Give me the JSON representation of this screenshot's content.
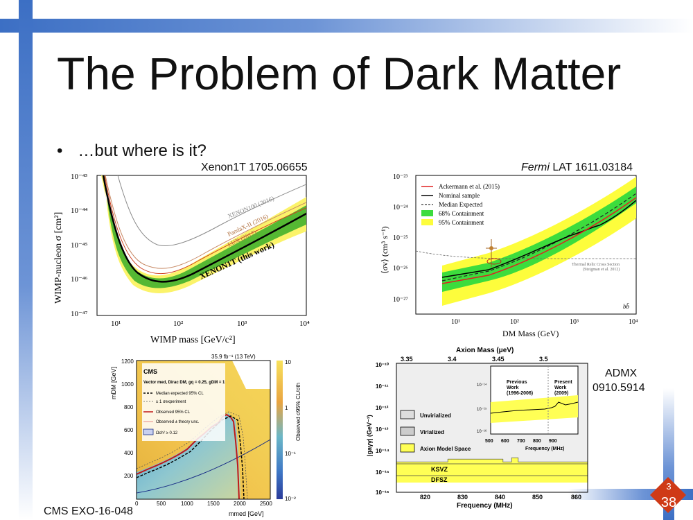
{
  "slide": {
    "title": "The Problem of Dark Matter",
    "bullet": "…but where is it?",
    "page_top": "3",
    "page_number": "38"
  },
  "refs": {
    "xenon": "Xenon1T 1705.06655",
    "fermi_italic": "Fermi",
    "fermi": " LAT 1611.03184",
    "admx_line1": "ADMX",
    "admx_line2": "0910.5914",
    "cms": "CMS EXO-16-048"
  },
  "colors": {
    "accent": "#3c6fc4",
    "badge": "#cf3a17",
    "green": "#33cc33",
    "yellow": "#ffff44"
  },
  "chart_data": [
    {
      "id": "xenon",
      "type": "line",
      "xlabel": "WIMP mass [GeV/c²]",
      "ylabel": "WIMP-nucleon σ [cm²]",
      "x_ticks": [
        "10¹",
        "10²",
        "10³",
        "10⁴"
      ],
      "y_ticks": [
        "10⁻⁴³",
        "10⁻⁴⁴",
        "10⁻⁴⁵",
        "10⁻⁴⁶",
        "10⁻⁴⁷"
      ],
      "series": [
        {
          "name": "XENON100 (2016)",
          "color": "#999999"
        },
        {
          "name": "PandaX-II (2016)",
          "color": "#cc7755"
        },
        {
          "name": "LUX (2017)",
          "color": "#cc5533"
        },
        {
          "name": "XENON1T (this work)",
          "color": "#000000"
        }
      ]
    },
    {
      "id": "fermi",
      "type": "line",
      "xlabel": "DM Mass (GeV)",
      "ylabel": "⟨σv⟩ (cm³ s⁻¹)",
      "x_ticks": [
        "10¹",
        "10²",
        "10³",
        "10⁴"
      ],
      "y_ticks": [
        "10⁻²³",
        "10⁻²⁴",
        "10⁻²⁵",
        "10⁻²⁶",
        "10⁻²⁷"
      ],
      "legend": [
        "Ackermann et al. (2015)",
        "Nominal sample",
        "Median Expected",
        "68% Containment",
        "95% Containment"
      ],
      "annotation_1": "Thermal Relic Cross Section",
      "annotation_2": "(Steigman et al. 2012)",
      "channel": "bb̄"
    },
    {
      "id": "cms",
      "type": "heatmap",
      "header_left": "CMS",
      "header_right": "35.9 fb⁻¹ (13 TeV)",
      "model": "Vector med, Dirac DM, gq = 0.25, gDM = 1",
      "legend": [
        "Median expected 95% CL",
        "± 1 σexperiment",
        "Observed 95% CL",
        "Observed ± theory unc.",
        "Ωch² ≥ 0.12"
      ],
      "xlabel": "mmed [GeV]",
      "ylabel": "mDM [GeV]",
      "zlabel": "Observed σ95% CL/σth",
      "x_ticks": [
        "0",
        "500",
        "1000",
        "1500",
        "2000",
        "2500"
      ],
      "y_ticks": [
        "1200",
        "1000",
        "800",
        "600",
        "400",
        "200"
      ],
      "z_ticks": [
        "10",
        "1",
        "10⁻¹",
        "10⁻²"
      ]
    },
    {
      "id": "admx",
      "type": "area",
      "top_axis_label": "Axion Mass (μeV)",
      "top_ticks": [
        "3.35",
        "3.4",
        "3.45",
        "3.5"
      ],
      "xlabel": "Frequency (MHz)",
      "x_ticks": [
        "820",
        "830",
        "840",
        "850",
        "860"
      ],
      "ylabel": "|gaγγ| (GeV⁻¹)",
      "y_ticks": [
        "10⁻¹⁰",
        "10⁻¹¹",
        "10⁻¹²",
        "10⁻¹³",
        "10⁻¹⁴",
        "10⁻¹⁵",
        "10⁻¹⁶"
      ],
      "legend": [
        "Unvirialized",
        "Virialized",
        "Axion Model Space"
      ],
      "lines": [
        "KSVZ",
        "DFSZ"
      ],
      "inset_labels": [
        "Previous Work (1996-2006)",
        "Present Work (2009)"
      ],
      "inset_x_ticks": [
        "500",
        "600",
        "700",
        "800",
        "900"
      ],
      "inset_xlabel": "Frequency (MHz)",
      "inset_y_ticks": [
        "10⁻¹⁴",
        "10⁻¹⁵",
        "10⁻¹⁶"
      ]
    }
  ]
}
